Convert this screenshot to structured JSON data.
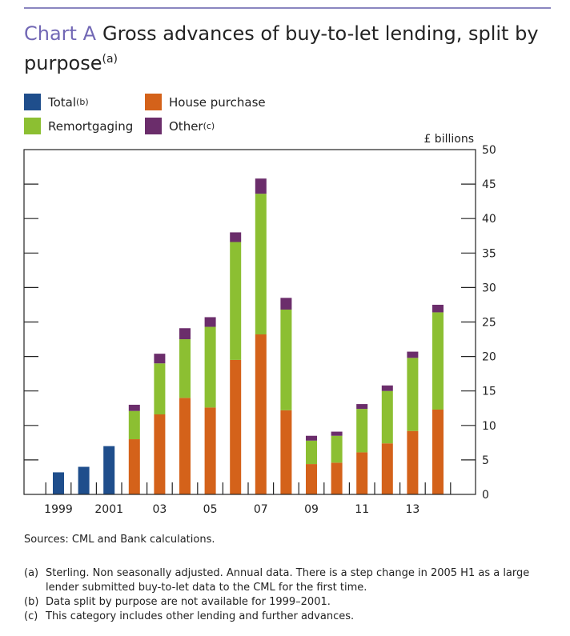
{
  "title": {
    "label": "Chart A",
    "text": "Gross advances of buy-to-let lending, split by purpose",
    "note": "(a)"
  },
  "legend": [
    {
      "key": "total",
      "label": "Total",
      "note": "(b)",
      "color": "#1f4e8c"
    },
    {
      "key": "house",
      "label": "House purchase",
      "note": "",
      "color": "#d4621a"
    },
    {
      "key": "remort",
      "label": "Remortgaging",
      "note": "",
      "color": "#8cbf32"
    },
    {
      "key": "other",
      "label": "Other",
      "note": "(c)",
      "color": "#6b2d6b"
    }
  ],
  "chart_data": {
    "type": "bar",
    "stacked": true,
    "unit_label": "£ billions",
    "ylim": [
      0,
      50
    ],
    "y_ticks": [
      0,
      5,
      10,
      15,
      20,
      25,
      30,
      35,
      40,
      45,
      50
    ],
    "y_axis_side": "right",
    "categories": [
      "1999",
      "2000",
      "2001",
      "2002",
      "2003",
      "2004",
      "2005",
      "2006",
      "2007",
      "2008",
      "2009",
      "2010",
      "2011",
      "2012",
      "2013",
      "2014"
    ],
    "x_tick_labels": [
      "1999",
      "",
      "2001",
      "",
      "03",
      "",
      "05",
      "",
      "07",
      "",
      "09",
      "",
      "11",
      "",
      "13",
      ""
    ],
    "series": [
      {
        "name": "Total",
        "color": "#1f4e8c",
        "values": [
          3.2,
          4.0,
          7.0,
          null,
          null,
          null,
          null,
          null,
          null,
          null,
          null,
          null,
          null,
          null,
          null,
          null
        ]
      },
      {
        "name": "House purchase",
        "color": "#d4621a",
        "values": [
          null,
          null,
          null,
          8.0,
          11.6,
          14.0,
          12.6,
          19.5,
          23.2,
          12.2,
          4.4,
          4.6,
          6.1,
          7.4,
          9.2,
          12.3
        ]
      },
      {
        "name": "Remortgaging",
        "color": "#8cbf32",
        "values": [
          null,
          null,
          null,
          4.1,
          7.4,
          8.5,
          11.7,
          17.1,
          20.4,
          14.6,
          3.4,
          3.9,
          6.3,
          7.6,
          10.6,
          14.1
        ]
      },
      {
        "name": "Other",
        "color": "#6b2d6b",
        "values": [
          null,
          null,
          null,
          0.9,
          1.4,
          1.6,
          1.4,
          1.4,
          2.2,
          1.7,
          0.7,
          0.6,
          0.7,
          0.8,
          0.9,
          1.1
        ]
      }
    ]
  },
  "sources": "Sources: CML and Bank calculations.",
  "footnotes": [
    {
      "mark": "(a)",
      "text": "Sterling. Non seasonally adjusted. Annual data. There is a step change in 2005 H1 as a large lender submitted buy-to-let data to the CML for the first time."
    },
    {
      "mark": "(b)",
      "text": "Data split by purpose are not available for 1999–2001."
    },
    {
      "mark": "(c)",
      "text": "This category includes other lending and further advances."
    }
  ]
}
